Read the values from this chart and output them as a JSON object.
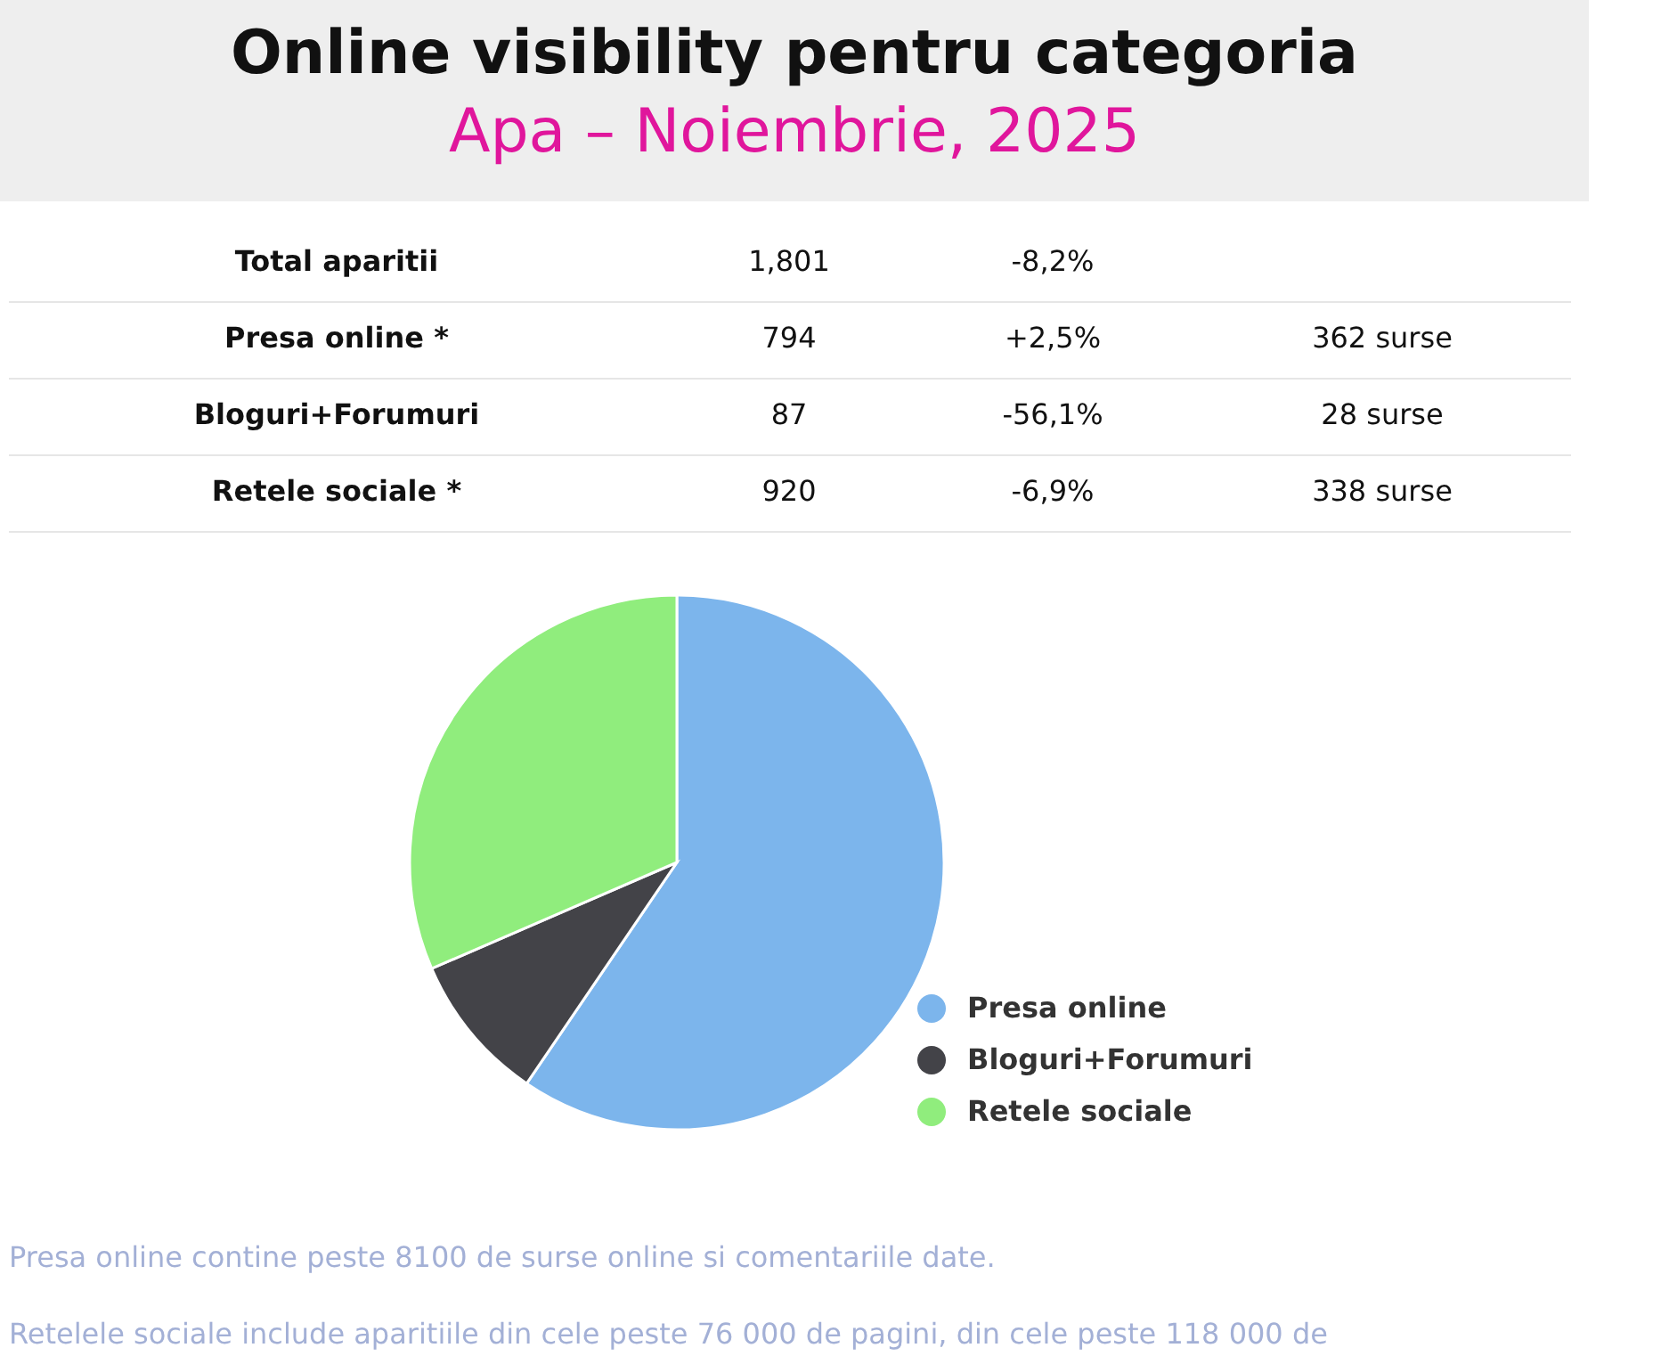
{
  "chart_data": {
    "type": "pie",
    "title": "Online visibility pentru categoria",
    "subtitle": "Apa – Noiembrie, 2025",
    "categories": [
      "Presa online",
      "Bloguri+Forumuri",
      "Retele sociale"
    ],
    "values": [
      59.5,
      9,
      31.5
    ],
    "colors": [
      "#7cb5ec",
      "#434348",
      "#90ed7d"
    ],
    "legend": "bottom right",
    "annotations": [
      "Total aparitii",
      "1,801",
      "-8,2%",
      "Presa online *",
      "794",
      "+2,5%",
      "362 surse",
      "Bloguri+Forumuri",
      "87",
      "-56,1%",
      "28 surse",
      "Retele sociale *",
      "920",
      "-6,9%",
      "338 surse",
      "Presa online contine peste 8100 de surse online si comentariile date.",
      "Retelele sociale include aparitiile din cele peste 76 000 de pagini, din cele peste 118 000 de"
    ]
  }
}
